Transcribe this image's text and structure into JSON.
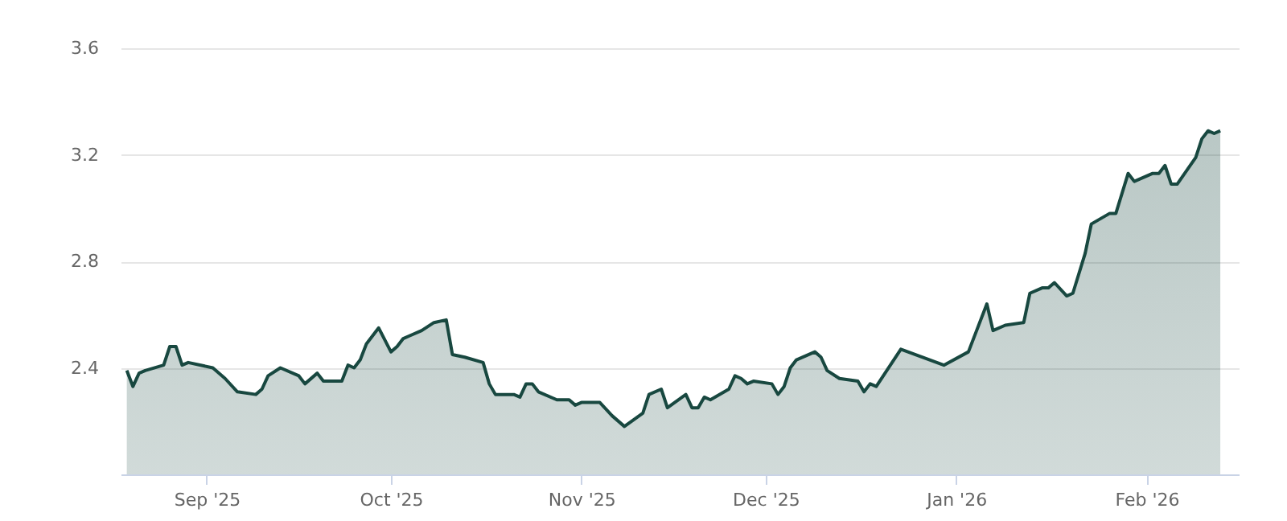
{
  "chart_data": {
    "type": "area",
    "x": [
      "2025-08-19",
      "2025-08-20",
      "2025-08-21",
      "2025-08-22",
      "2025-08-25",
      "2025-08-26",
      "2025-08-27",
      "2025-08-28",
      "2025-08-29",
      "2025-09-02",
      "2025-09-04",
      "2025-09-06",
      "2025-09-09",
      "2025-09-10",
      "2025-09-11",
      "2025-09-13",
      "2025-09-16",
      "2025-09-17",
      "2025-09-19",
      "2025-09-20",
      "2025-09-23",
      "2025-09-24",
      "2025-09-25",
      "2025-09-26",
      "2025-09-27",
      "2025-09-29",
      "2025-10-01",
      "2025-10-02",
      "2025-10-03",
      "2025-10-04",
      "2025-10-06",
      "2025-10-08",
      "2025-10-10",
      "2025-10-11",
      "2025-10-13",
      "2025-10-16",
      "2025-10-17",
      "2025-10-18",
      "2025-10-21",
      "2025-10-22",
      "2025-10-23",
      "2025-10-24",
      "2025-10-25",
      "2025-10-28",
      "2025-10-30",
      "2025-10-31",
      "2025-11-01",
      "2025-11-04",
      "2025-11-06",
      "2025-11-08",
      "2025-11-11",
      "2025-11-12",
      "2025-11-14",
      "2025-11-15",
      "2025-11-18",
      "2025-11-19",
      "2025-11-20",
      "2025-11-21",
      "2025-11-22",
      "2025-11-25",
      "2025-11-26",
      "2025-11-27",
      "2025-11-28",
      "2025-11-29",
      "2025-12-02",
      "2025-12-03",
      "2025-12-04",
      "2025-12-05",
      "2025-12-06",
      "2025-12-09",
      "2025-12-10",
      "2025-12-11",
      "2025-12-13",
      "2025-12-16",
      "2025-12-17",
      "2025-12-18",
      "2025-12-19",
      "2025-12-23",
      "2025-12-30",
      "2026-01-03",
      "2026-01-06",
      "2026-01-07",
      "2026-01-09",
      "2026-01-12",
      "2026-01-13",
      "2026-01-15",
      "2026-01-16",
      "2026-01-17",
      "2026-01-19",
      "2026-01-20",
      "2026-01-22",
      "2026-01-23",
      "2026-01-26",
      "2026-01-27",
      "2026-01-29",
      "2026-01-30",
      "2026-02-02",
      "2026-02-03",
      "2026-02-04",
      "2026-02-05",
      "2026-02-06",
      "2026-02-09",
      "2026-02-10",
      "2026-02-11",
      "2026-02-12",
      "2026-02-13"
    ],
    "series": [
      {
        "color": "#184840",
        "values": [
          2.39,
          2.33,
          2.38,
          2.39,
          2.41,
          2.48,
          2.48,
          2.41,
          2.42,
          2.4,
          2.36,
          2.31,
          2.3,
          2.32,
          2.37,
          2.4,
          2.37,
          2.34,
          2.38,
          2.35,
          2.35,
          2.41,
          2.4,
          2.43,
          2.49,
          2.55,
          2.46,
          2.48,
          2.51,
          2.52,
          2.54,
          2.57,
          2.58,
          2.45,
          2.44,
          2.42,
          2.34,
          2.3,
          2.3,
          2.29,
          2.34,
          2.34,
          2.31,
          2.28,
          2.28,
          2.26,
          2.27,
          2.27,
          2.22,
          2.18,
          2.23,
          2.3,
          2.32,
          2.25,
          2.3,
          2.25,
          2.25,
          2.29,
          2.28,
          2.32,
          2.37,
          2.36,
          2.34,
          2.35,
          2.34,
          2.3,
          2.33,
          2.4,
          2.43,
          2.46,
          2.44,
          2.39,
          2.36,
          2.35,
          2.31,
          2.34,
          2.33,
          2.47,
          2.41,
          2.46,
          2.64,
          2.54,
          2.56,
          2.57,
          2.68,
          2.7,
          2.7,
          2.72,
          2.67,
          2.68,
          2.83,
          2.94,
          2.98,
          2.98,
          3.13,
          3.1,
          3.13,
          3.13,
          3.16,
          3.09,
          3.09,
          3.19,
          3.26,
          3.29,
          3.28,
          3.29
        ]
      }
    ],
    "xlim": [
      "2025-08-18",
      "2026-02-16"
    ],
    "xticks": [
      {
        "value": "2025-09-01",
        "label": "Sep '25"
      },
      {
        "value": "2025-10-01",
        "label": "Oct '25"
      },
      {
        "value": "2025-11-01",
        "label": "Nov '25"
      },
      {
        "value": "2025-12-01",
        "label": "Dec '25"
      },
      {
        "value": "2026-01-01",
        "label": "Jan '26"
      },
      {
        "value": "2026-02-01",
        "label": "Feb '26"
      }
    ],
    "ylim": [
      2.0,
      3.6
    ],
    "yticks": [
      2.4,
      2.8,
      3.2,
      3.6
    ],
    "grid": "y"
  }
}
